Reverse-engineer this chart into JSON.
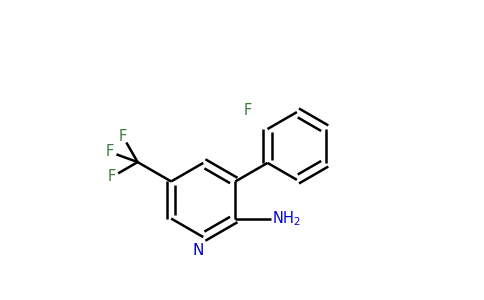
{
  "bg_color": "#ffffff",
  "bond_color": "#000000",
  "N_color": "#0000cd",
  "F_color": "#3a7d3a",
  "lw": 1.8,
  "figsize": [
    4.84,
    3.0
  ],
  "dpi": 100,
  "xlim": [
    0.05,
    0.95
  ],
  "ylim": [
    0.05,
    0.98
  ]
}
